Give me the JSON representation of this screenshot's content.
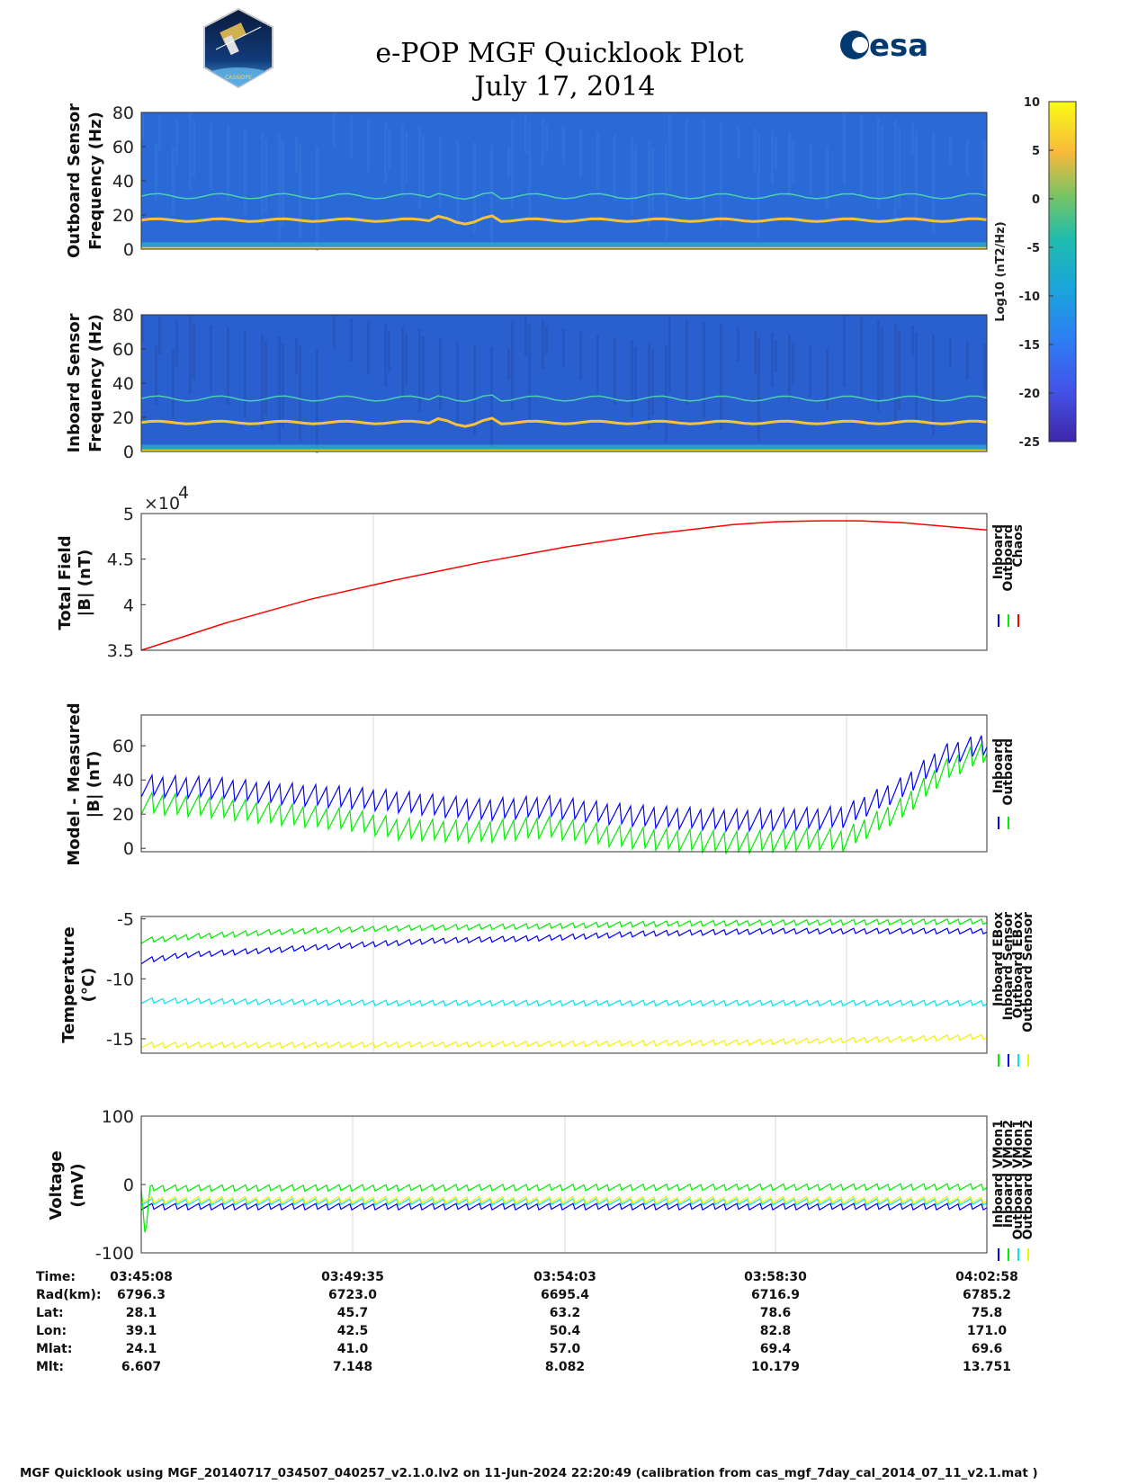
{
  "header": {
    "title": "e-POP MGF Quicklook Plot",
    "date": "July 17, 2014",
    "left_logo": "cassiope-mission-logo",
    "left_logo_text": "CASSIOPE",
    "right_logo_text": "esa"
  },
  "colors": {
    "inboard": "#0000ff",
    "outboard": "#00ee00",
    "chaos": "#ff0000",
    "cyan": "#00e5ee",
    "yellow": "#f2f200",
    "spectrogram_bg": "#2a6ad6"
  },
  "colorbar": {
    "label": "Log10 (nT2/Hz)",
    "ticks": [
      "10",
      "5",
      "0",
      "-5",
      "-10",
      "-15",
      "-20",
      "-25"
    ]
  },
  "chart_data": [
    {
      "type": "heatmap",
      "panel": "outboard-spectrogram",
      "ylabel": [
        "Outboard Sensor",
        "Frequency (Hz)"
      ],
      "yticks": [
        "80",
        "60",
        "40",
        "20",
        "0"
      ],
      "ylim": [
        0,
        80
      ],
      "zlim": [
        -25,
        10
      ],
      "bands_hz": [
        17,
        31
      ]
    },
    {
      "type": "heatmap",
      "panel": "inboard-spectrogram",
      "ylabel": [
        "Inboard Sensor",
        "Frequency (Hz)"
      ],
      "yticks": [
        "80",
        "60",
        "40",
        "20",
        "0"
      ],
      "ylim": [
        0,
        80
      ],
      "zlim": [
        -25,
        10
      ],
      "bands_hz": [
        17,
        31
      ]
    },
    {
      "type": "line",
      "panel": "total-field",
      "ylabel": [
        "Total Field",
        "|B| (nT)"
      ],
      "multiplier": "×10",
      "multiplier_exp": "4",
      "yticks": [
        "5",
        "4.5",
        "4",
        "3.5"
      ],
      "ylim": [
        3.5,
        5.0
      ],
      "legend": [
        "Inboard",
        "Outboard",
        "Chaos"
      ],
      "series": [
        {
          "name": "Chaos",
          "x": [
            0,
            0.1,
            0.2,
            0.3,
            0.4,
            0.5,
            0.6,
            0.7,
            0.75,
            0.8,
            0.85,
            0.9,
            1.0
          ],
          "values": [
            3.5,
            3.8,
            4.06,
            4.27,
            4.46,
            4.63,
            4.77,
            4.88,
            4.91,
            4.92,
            4.92,
            4.9,
            4.82
          ]
        }
      ]
    },
    {
      "type": "line",
      "panel": "model-measured",
      "ylabel": [
        "Model - Measured",
        "|B| (nT)"
      ],
      "yticks": [
        "60",
        "40",
        "20",
        "0"
      ],
      "ylim": [
        -2,
        78
      ],
      "legend": [
        "Inboard",
        "Outboard"
      ],
      "series": [
        {
          "name": "Inboard",
          "x": [
            0,
            0.08,
            0.15,
            0.25,
            0.3,
            0.4,
            0.48,
            0.55,
            0.6,
            0.7,
            0.8,
            0.83,
            0.9,
            0.95,
            1.0
          ],
          "values": [
            37,
            36,
            33,
            30,
            28,
            23,
            25,
            21,
            19,
            17,
            18,
            19,
            36,
            55,
            62
          ]
        },
        {
          "name": "Outboard",
          "x": [
            0,
            0.08,
            0.15,
            0.25,
            0.3,
            0.4,
            0.48,
            0.55,
            0.6,
            0.7,
            0.8,
            0.83,
            0.9,
            0.95,
            1.0
          ],
          "values": [
            27,
            25,
            21,
            17,
            12,
            10,
            13,
            8,
            6,
            4,
            6,
            5,
            24,
            46,
            58
          ]
        }
      ]
    },
    {
      "type": "line",
      "panel": "temperature",
      "ylabel": [
        "Temperature",
        "(°C)"
      ],
      "yticks": [
        "-5",
        "-10",
        "-15"
      ],
      "ylim": [
        -16.2,
        -4.8
      ],
      "legend": [
        "Inboard EBox",
        "Inboard Sensor",
        "Outboard EBox",
        "Outboard Sensor"
      ],
      "series": [
        {
          "name": "Inboard EBox",
          "x": [
            0,
            0.05,
            0.15,
            0.27,
            0.35,
            0.47,
            0.6,
            0.75,
            1.0
          ],
          "values": [
            -6.8,
            -6.5,
            -6.1,
            -5.8,
            -5.7,
            -5.6,
            -5.4,
            -5.3,
            -5.2
          ]
        },
        {
          "name": "Inboard Sensor",
          "x": [
            0,
            0.05,
            0.15,
            0.27,
            0.35,
            0.47,
            0.6,
            0.75,
            1.0
          ],
          "values": [
            -8.5,
            -8.0,
            -7.6,
            -7.1,
            -6.8,
            -6.6,
            -6.2,
            -6.0,
            -6.0
          ]
        },
        {
          "name": "Outboard EBox",
          "x": [
            0,
            0.3,
            0.6,
            0.9,
            1.0
          ],
          "values": [
            -11.8,
            -12.0,
            -12.0,
            -12.0,
            -12.0
          ]
        },
        {
          "name": "Outboard Sensor",
          "x": [
            0,
            0.2,
            0.5,
            0.7,
            0.9,
            1.0
          ],
          "values": [
            -15.5,
            -15.5,
            -15.4,
            -15.3,
            -15.0,
            -14.8
          ]
        }
      ]
    },
    {
      "type": "line",
      "panel": "voltage",
      "ylabel": [
        "Voltage",
        "(mV)"
      ],
      "yticks": [
        "100",
        "0",
        "-100"
      ],
      "ylim": [
        -100,
        100
      ],
      "legend": [
        "Inboard VMon1",
        "Inboard VMon2",
        "Outboard VMon1",
        "Outboard VMon2"
      ],
      "series": [
        {
          "name": "Inboard VMon1",
          "x": [
            0,
            1
          ],
          "values": [
            -32,
            -32
          ]
        },
        {
          "name": "Inboard VMon2",
          "x": [
            0,
            0.005,
            0.01,
            1
          ],
          "values": [
            0,
            -80,
            -5,
            -3
          ]
        },
        {
          "name": "Outboard VMon1",
          "x": [
            0,
            1
          ],
          "values": [
            -25,
            -25
          ]
        },
        {
          "name": "Outboard VMon2",
          "x": [
            0,
            1
          ],
          "values": [
            -22,
            -22
          ]
        }
      ]
    }
  ],
  "ephemeris": {
    "labels": [
      "Time:",
      "Rad(km):",
      "Lat:",
      "Lon:",
      "Mlat:",
      "Mlt:"
    ],
    "columns": [
      [
        "03:45:08",
        "6796.3",
        "28.1",
        "39.1",
        "24.1",
        "6.607"
      ],
      [
        "03:49:35",
        "6723.0",
        "45.7",
        "42.5",
        "41.0",
        "7.148"
      ],
      [
        "03:54:03",
        "6695.4",
        "63.2",
        "50.4",
        "57.0",
        "8.082"
      ],
      [
        "03:58:30",
        "6716.9",
        "78.6",
        "82.8",
        "69.4",
        "10.179"
      ],
      [
        "04:02:58",
        "6785.2",
        "75.8",
        "171.0",
        "69.6",
        "13.751"
      ]
    ]
  },
  "footer": "MGF Quicklook using MGF_20140717_034507_040257_v2.1.0.lv2 on 11-Jun-2024 22:20:49 (calibration from cas_mgf_7day_cal_2014_07_11_v2.1.mat )"
}
